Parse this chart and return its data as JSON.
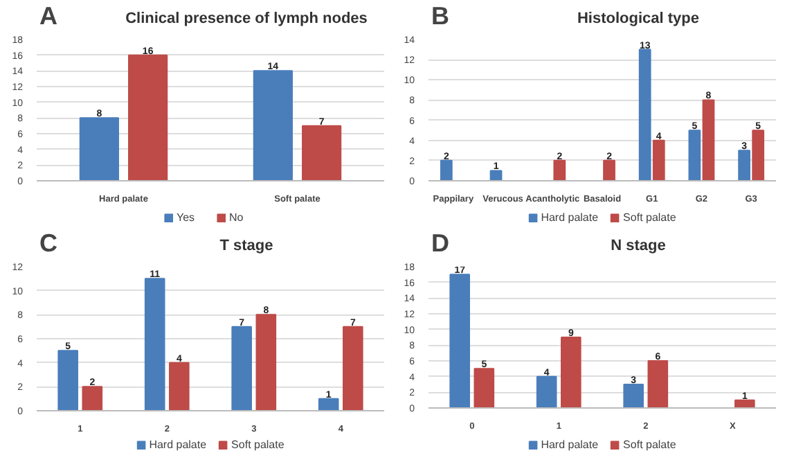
{
  "chart_data": [
    {
      "type": "bar",
      "title": "Clinical presence of lymph nodes",
      "annotations": [
        "A"
      ],
      "categories": [
        "Hard palate",
        "Soft palate"
      ],
      "series": [
        {
          "name": "Yes",
          "color": "#4a7ebb",
          "values": [
            8,
            14
          ]
        },
        {
          "name": "No",
          "color": "#be4b48",
          "values": [
            16,
            7
          ]
        }
      ],
      "ylim": [
        0,
        18
      ],
      "yticks": [
        0,
        2,
        4,
        6,
        8,
        10,
        12,
        14,
        16,
        18
      ],
      "grid": "y",
      "legend": "bottom",
      "data_labels": true
    },
    {
      "type": "bar",
      "title": "Histological type",
      "annotations": [
        "B"
      ],
      "categories": [
        "Pappilary",
        "Verucous",
        "Acantholytic",
        "Basaloid",
        "G1",
        "G2",
        "G3"
      ],
      "series": [
        {
          "name": "Hard palate",
          "color": "#4a7ebb",
          "values": [
            2,
            1,
            null,
            null,
            13,
            5,
            3
          ]
        },
        {
          "name": "Soft palate",
          "color": "#be4b48",
          "values": [
            null,
            null,
            2,
            2,
            4,
            8,
            5
          ]
        }
      ],
      "ylim": [
        0,
        14
      ],
      "yticks": [
        0,
        2,
        4,
        6,
        8,
        10,
        12,
        14
      ],
      "grid": "y",
      "legend": "bottom",
      "data_labels": true
    },
    {
      "type": "bar",
      "title": "T stage",
      "annotations": [
        "C"
      ],
      "categories": [
        "1",
        "2",
        "3",
        "4"
      ],
      "series": [
        {
          "name": "Hard palate",
          "color": "#4a7ebb",
          "values": [
            5,
            11,
            7,
            1
          ]
        },
        {
          "name": "Soft palate",
          "color": "#be4b48",
          "values": [
            2,
            4,
            8,
            7
          ]
        }
      ],
      "ylim": [
        0,
        12
      ],
      "yticks": [
        0,
        2,
        4,
        6,
        8,
        10,
        12
      ],
      "grid": "y",
      "legend": "bottom",
      "data_labels": true
    },
    {
      "type": "bar",
      "title": "N stage",
      "annotations": [
        "D"
      ],
      "categories": [
        "0",
        "1",
        "2",
        "X"
      ],
      "series": [
        {
          "name": "Hard palate",
          "color": "#4a7ebb",
          "values": [
            17,
            4,
            3,
            null
          ]
        },
        {
          "name": "Soft palate",
          "color": "#be4b48",
          "values": [
            5,
            9,
            6,
            1
          ]
        }
      ],
      "ylim": [
        0,
        18
      ],
      "yticks": [
        0,
        2,
        4,
        6,
        8,
        10,
        12,
        14,
        16,
        18
      ],
      "grid": "y",
      "legend": "bottom",
      "data_labels": true
    }
  ]
}
